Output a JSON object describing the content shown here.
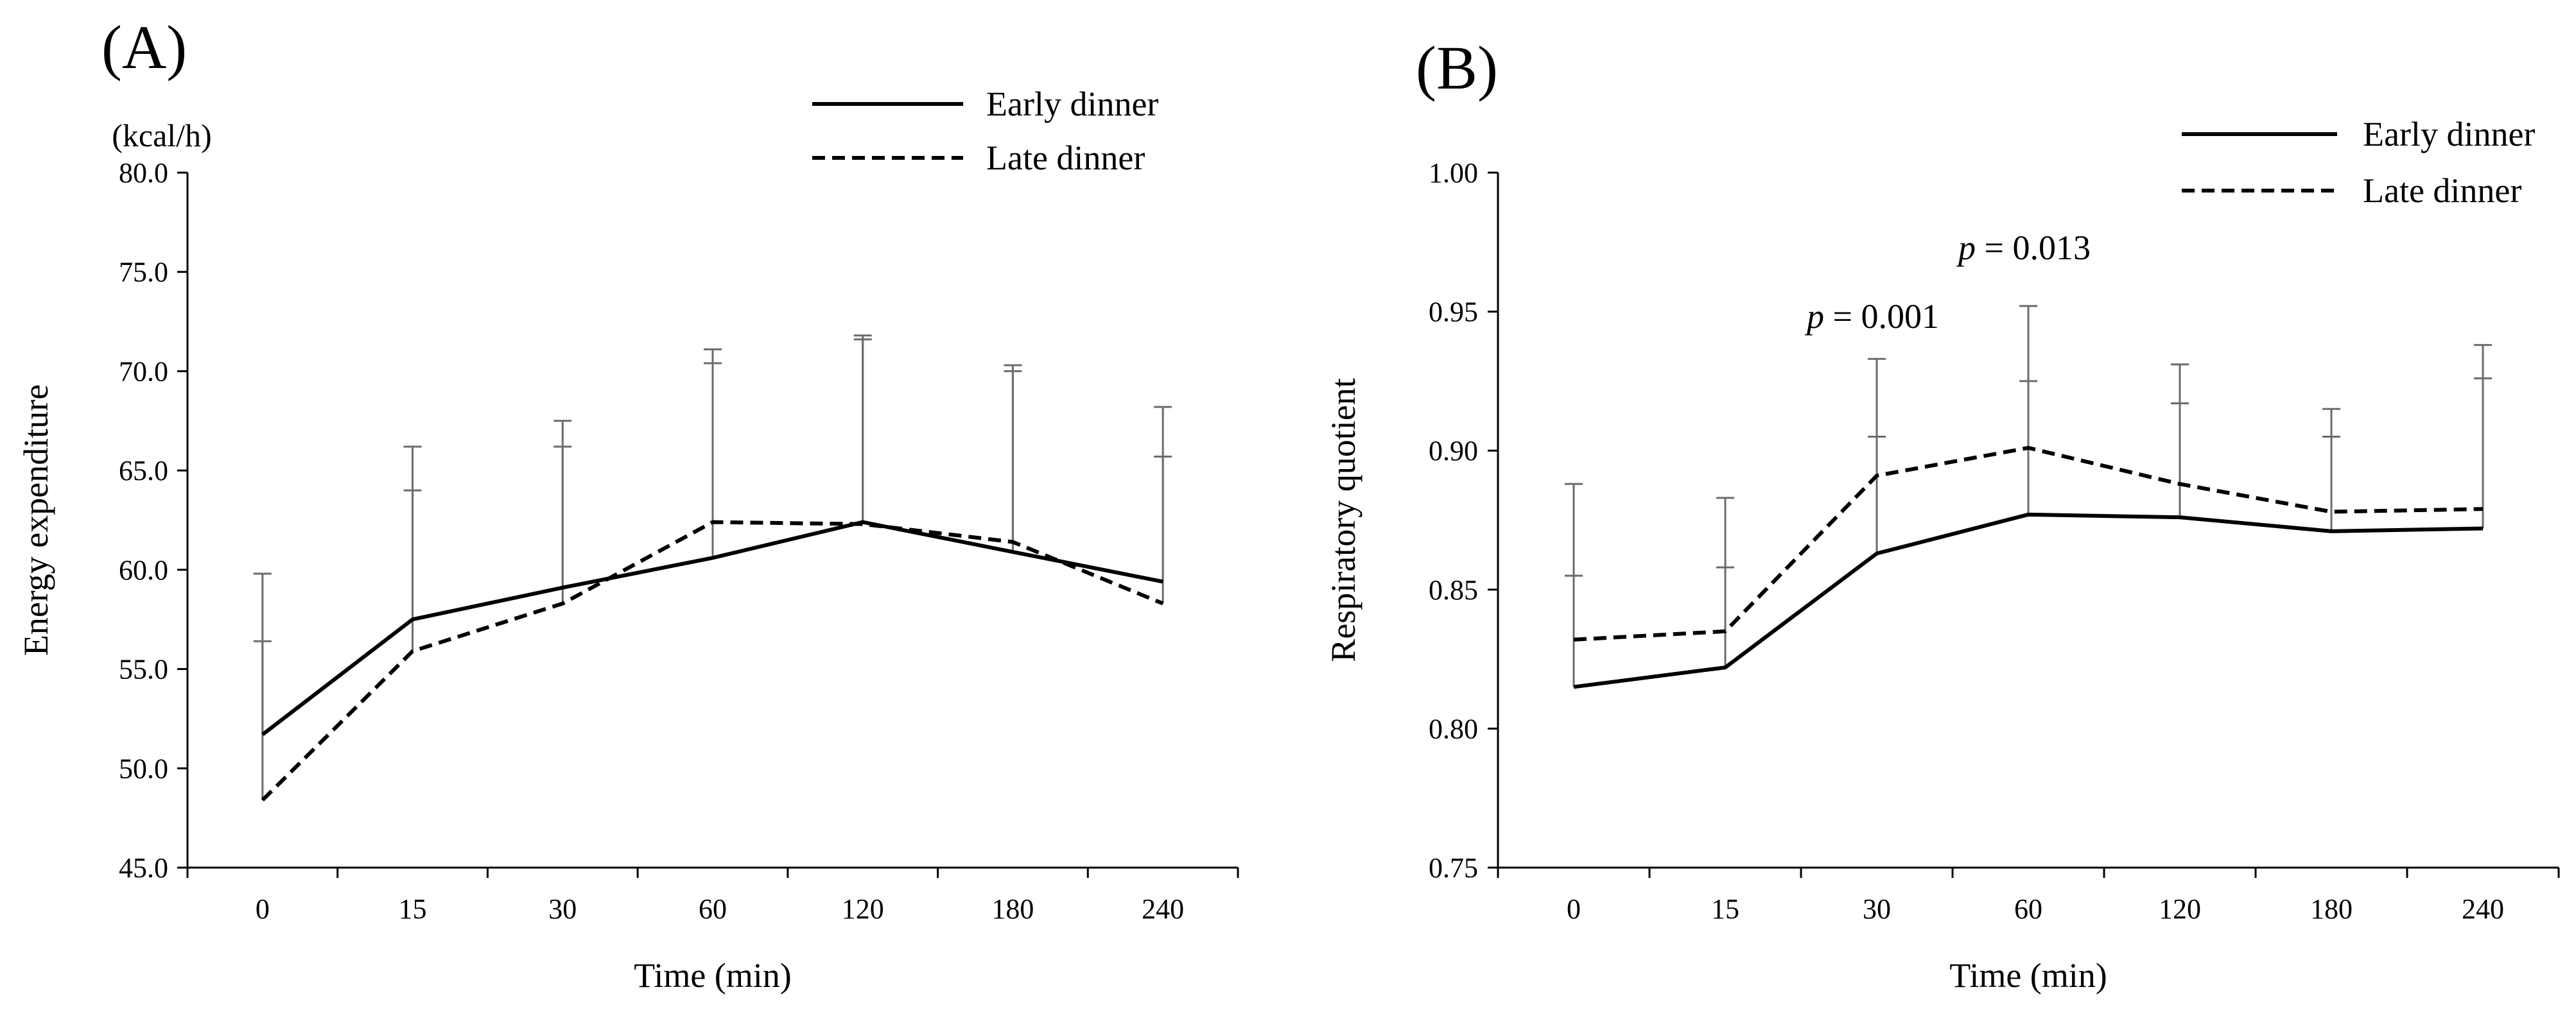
{
  "chart_data": [
    {
      "panel": "(A)",
      "type": "line",
      "unit_label": "(kcal/h)",
      "xlabel": "Time (min)",
      "ylabel": "Energy expenditure",
      "categories": [
        "0",
        "15",
        "30",
        "60",
        "120",
        "180",
        "240"
      ],
      "ylim": [
        45.0,
        80.0
      ],
      "yticks": [
        "45.0",
        "50.0",
        "55.0",
        "60.0",
        "65.0",
        "70.0",
        "75.0",
        "80.0"
      ],
      "legend_position": "top-right",
      "series": [
        {
          "name": "Early dinner",
          "style": "solid",
          "values": [
            51.7,
            57.5,
            59.1,
            60.6,
            62.4,
            60.9,
            59.4
          ],
          "error_upper": [
            56.4,
            64.0,
            66.2,
            70.4,
            71.6,
            70.0,
            65.7
          ]
        },
        {
          "name": "Late dinner",
          "style": "dashed",
          "values": [
            48.4,
            55.9,
            58.3,
            62.4,
            62.3,
            61.4,
            58.3
          ],
          "error_upper": [
            59.8,
            66.2,
            67.5,
            71.1,
            71.8,
            70.3,
            68.2
          ]
        }
      ],
      "annotations": []
    },
    {
      "panel": "(B)",
      "type": "line",
      "unit_label": "",
      "xlabel": "Time (min)",
      "ylabel": "Respiratory quotient",
      "categories": [
        "0",
        "15",
        "30",
        "60",
        "120",
        "180",
        "240"
      ],
      "ylim": [
        0.75,
        1.0
      ],
      "yticks": [
        "0.75",
        "0.80",
        "0.85",
        "0.90",
        "0.95",
        "1.00"
      ],
      "legend_position": "top-right",
      "series": [
        {
          "name": "Early dinner",
          "style": "solid",
          "values": [
            0.815,
            0.822,
            0.863,
            0.877,
            0.876,
            0.871,
            0.872
          ],
          "error_upper": [
            0.855,
            0.858,
            0.905,
            0.925,
            0.917,
            0.905,
            0.926
          ]
        },
        {
          "name": "Late dinner",
          "style": "dashed",
          "values": [
            0.832,
            0.835,
            0.891,
            0.901,
            0.888,
            0.878,
            0.879
          ],
          "error_upper": [
            0.888,
            0.883,
            0.933,
            0.952,
            0.931,
            0.915,
            0.938
          ]
        }
      ],
      "annotations": [
        {
          "category": "30",
          "italic": "p",
          "rest": " = 0.001"
        },
        {
          "category": "60",
          "italic": "p",
          "rest": " = 0.013"
        }
      ]
    }
  ]
}
